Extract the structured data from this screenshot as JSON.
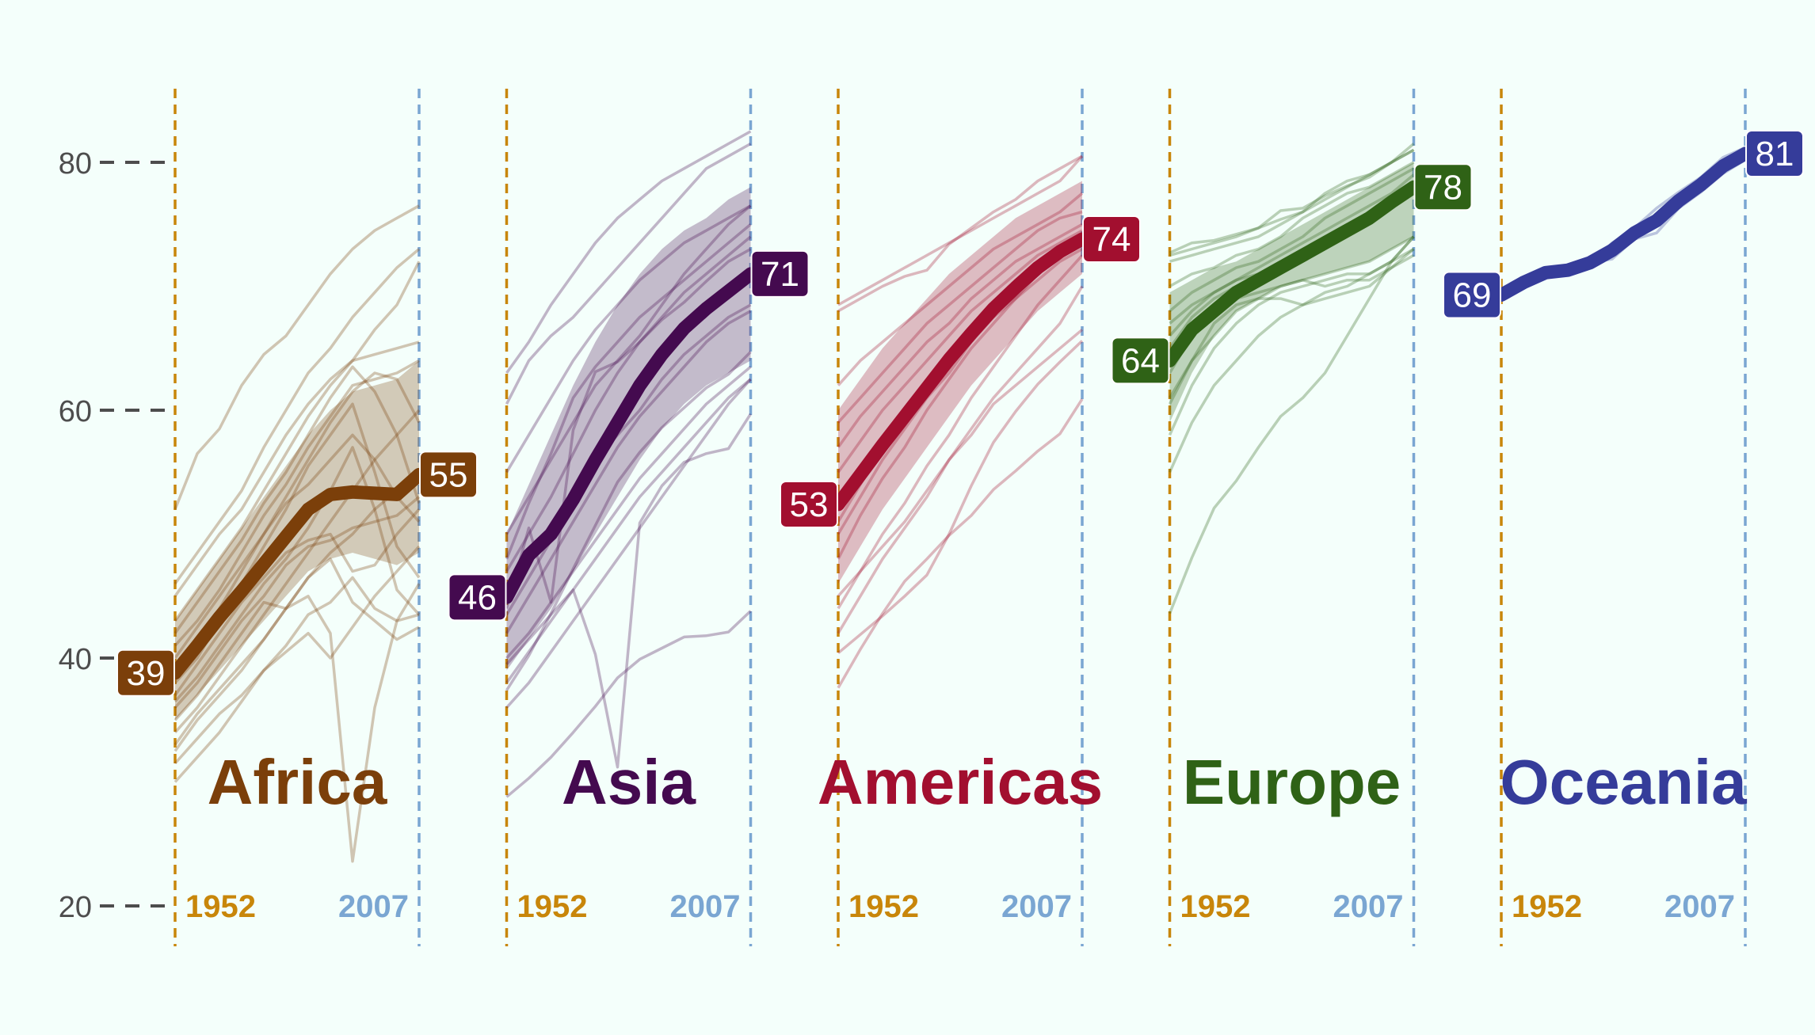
{
  "chart_data": {
    "type": "line",
    "x_years": [
      1952,
      1957,
      1962,
      1967,
      1972,
      1977,
      1982,
      1987,
      1992,
      1997,
      2002,
      2007
    ],
    "ylim": [
      20,
      85
    ],
    "yticks": [
      20,
      40,
      60,
      80
    ],
    "start_year_label": "1952",
    "end_year_label": "2007",
    "start_year_color": "#c8860a",
    "end_year_color": "#7aa6d2",
    "panels": [
      {
        "name": "Africa",
        "color": "#7b3f0a",
        "start_label": "39",
        "end_label": "55",
        "median": [
          38.8,
          41.0,
          43.3,
          45.4,
          47.6,
          49.8,
          52.0,
          53.2,
          53.4,
          53.3,
          53.2,
          54.8
        ],
        "band_low": [
          35.0,
          37.0,
          39.0,
          41.0,
          43.0,
          45.0,
          47.0,
          48.0,
          48.5,
          48.0,
          47.5,
          48.5
        ],
        "band_high": [
          43.0,
          45.5,
          48.0,
          50.5,
          53.0,
          55.5,
          58.0,
          60.0,
          61.5,
          62.0,
          62.5,
          64.0
        ],
        "countries": [
          [
            43.0,
            45.5,
            48.0,
            50.5,
            53.5,
            56.5,
            59.5,
            62.0,
            64.0,
            66.5,
            68.5,
            72.0
          ],
          [
            46.0,
            48.5,
            51.0,
            53.5,
            57.0,
            60.0,
            63.0,
            65.0,
            67.5,
            69.5,
            71.5,
            73.0
          ],
          [
            52.0,
            56.5,
            58.5,
            62.0,
            64.5,
            66.0,
            68.5,
            71.0,
            73.0,
            74.5,
            75.5,
            76.5
          ],
          [
            33.0,
            35.5,
            37.5,
            39.5,
            41.5,
            44.0,
            46.5,
            48.0,
            44.5,
            43.0,
            41.5,
            42.5
          ],
          [
            30.0,
            32.0,
            34.0,
            36.5,
            39.0,
            41.0,
            43.5,
            44.5,
            46.5,
            44.0,
            43.0,
            43.5
          ],
          [
            38.0,
            40.0,
            43.0,
            46.0,
            49.0,
            52.0,
            55.5,
            58.0,
            60.5,
            55.0,
            49.0,
            46.5
          ],
          [
            32.5,
            35.0,
            37.0,
            39.0,
            41.5,
            44.0,
            46.5,
            48.5,
            50.0,
            52.0,
            53.5,
            55.0
          ],
          [
            40.0,
            42.5,
            45.0,
            47.5,
            50.0,
            53.0,
            56.0,
            59.0,
            61.5,
            63.0,
            62.5,
            59.0
          ],
          [
            35.0,
            37.0,
            39.5,
            42.0,
            44.5,
            44.0,
            45.0,
            42.0,
            23.6,
            36.0,
            43.0,
            46.0
          ],
          [
            42.0,
            44.5,
            47.0,
            49.5,
            52.5,
            55.0,
            58.0,
            61.0,
            63.5,
            61.5,
            58.0,
            52.5
          ],
          [
            36.5,
            38.5,
            41.0,
            43.5,
            46.0,
            48.0,
            50.5,
            53.5,
            57.0,
            52.0,
            45.5,
            43.5
          ],
          [
            37.0,
            39.5,
            42.0,
            44.5,
            46.5,
            48.5,
            49.5,
            50.0,
            47.0,
            47.5,
            50.0,
            52.0
          ],
          [
            39.0,
            41.5,
            44.0,
            47.0,
            50.0,
            52.5,
            54.0,
            56.0,
            58.0,
            56.0,
            53.0,
            51.0
          ],
          [
            45.0,
            47.5,
            50.0,
            52.0,
            55.0,
            58.0,
            60.5,
            62.5,
            64.0,
            64.5,
            65.0,
            65.5
          ],
          [
            34.0,
            36.0,
            38.5,
            41.0,
            43.5,
            46.0,
            48.5,
            51.0,
            53.5,
            56.0,
            58.0,
            60.0
          ],
          [
            41.0,
            43.0,
            45.5,
            48.5,
            51.5,
            54.0,
            57.0,
            59.5,
            62.0,
            62.5,
            63.0,
            64.0
          ],
          [
            36.0,
            38.0,
            40.5,
            43.0,
            45.0,
            47.5,
            49.0,
            49.5,
            50.5,
            51.0,
            51.5,
            53.0
          ],
          [
            31.5,
            33.5,
            35.5,
            37.0,
            39.0,
            40.5,
            42.0,
            40.0,
            42.5,
            45.0,
            47.0,
            49.0
          ]
        ]
      },
      {
        "name": "Asia",
        "color": "#440a4f",
        "start_label": "46",
        "end_label": "71",
        "median": [
          44.9,
          48.3,
          50.0,
          52.8,
          56.0,
          59.0,
          62.0,
          64.5,
          66.6,
          68.2,
          69.6,
          71.0
        ],
        "band_low": [
          39.0,
          41.5,
          44.0,
          47.0,
          50.0,
          53.0,
          56.0,
          58.5,
          60.5,
          62.0,
          63.0,
          64.0
        ],
        "band_high": [
          50.0,
          54.0,
          58.0,
          62.0,
          65.5,
          68.5,
          71.0,
          73.0,
          74.5,
          75.5,
          77.0,
          78.0
        ],
        "countries": [
          [
            63.0,
            65.5,
            68.5,
            71.0,
            73.5,
            75.5,
            77.0,
            78.5,
            79.5,
            80.5,
            81.5,
            82.5
          ],
          [
            60.5,
            64.0,
            66.0,
            67.5,
            69.5,
            71.5,
            73.5,
            75.5,
            77.5,
            79.5,
            80.5,
            81.5
          ],
          [
            28.8,
            30.3,
            32.0,
            34.0,
            36.1,
            38.4,
            39.9,
            40.8,
            41.7,
            41.8,
            42.1,
            43.8
          ],
          [
            39.5,
            41.5,
            43.5,
            45.5,
            40.3,
            31.2,
            50.9,
            53.9,
            55.8,
            56.5,
            56.9,
            59.7
          ],
          [
            44.0,
            50.5,
            44.5,
            58.4,
            63.1,
            63.9,
            65.5,
            67.3,
            68.7,
            70.4,
            72.0,
            73.0
          ],
          [
            37.4,
            40.2,
            43.6,
            47.2,
            50.7,
            54.2,
            56.6,
            58.6,
            60.2,
            61.8,
            62.9,
            64.7
          ],
          [
            36.0,
            38.0,
            40.5,
            43.0,
            45.5,
            48.0,
            50.5,
            53.0,
            55.5,
            58.0,
            60.5,
            62.5
          ],
          [
            47.0,
            50.0,
            53.0,
            56.5,
            60.0,
            63.0,
            65.5,
            67.5,
            69.5,
            71.0,
            72.5,
            74.0
          ],
          [
            48.0,
            52.5,
            56.5,
            61.0,
            63.5,
            65.5,
            67.5,
            69.0,
            70.5,
            72.0,
            73.5,
            75.0
          ],
          [
            40.0,
            42.0,
            44.5,
            47.0,
            49.5,
            52.0,
            54.5,
            56.5,
            58.5,
            60.5,
            62.0,
            63.5
          ],
          [
            50.0,
            53.0,
            56.0,
            59.0,
            62.0,
            64.0,
            66.0,
            68.5,
            71.0,
            73.0,
            75.0,
            76.5
          ],
          [
            42.0,
            45.0,
            48.0,
            51.0,
            54.0,
            57.0,
            59.5,
            61.5,
            63.5,
            65.5,
            67.0,
            68.0
          ],
          [
            45.0,
            48.0,
            50.5,
            53.0,
            56.0,
            58.0,
            60.0,
            62.5,
            64.5,
            66.0,
            67.5,
            68.5
          ],
          [
            38.0,
            40.5,
            43.0,
            45.5,
            48.0,
            50.5,
            53.0,
            55.0,
            57.0,
            59.0,
            61.0,
            62.5
          ],
          [
            55.0,
            58.0,
            61.0,
            64.0,
            66.5,
            68.5,
            70.5,
            72.0,
            73.5,
            74.5,
            75.5,
            76.5
          ],
          [
            43.5,
            46.5,
            49.5,
            52.5,
            55.5,
            58.5,
            61.5,
            64.0,
            66.5,
            68.5,
            70.0,
            71.5
          ]
        ]
      },
      {
        "name": "Americas",
        "color": "#a20f2f",
        "start_label": "53",
        "end_label": "74",
        "median": [
          52.4,
          54.8,
          57.2,
          59.5,
          61.8,
          64.1,
          66.2,
          68.2,
          69.9,
          71.5,
          72.8,
          73.8
        ],
        "band_low": [
          46.0,
          49.0,
          52.0,
          54.5,
          57.0,
          59.5,
          62.0,
          64.0,
          66.0,
          68.0,
          69.5,
          71.0
        ],
        "band_high": [
          60.0,
          62.5,
          65.0,
          67.0,
          69.0,
          71.0,
          72.5,
          74.0,
          75.5,
          76.5,
          77.5,
          78.5
        ],
        "countries": [
          [
            68.5,
            69.5,
            70.5,
            71.5,
            72.5,
            73.5,
            74.5,
            75.5,
            76.5,
            77.5,
            78.5,
            80.5
          ],
          [
            68.0,
            69.0,
            70.0,
            70.8,
            71.3,
            73.4,
            74.7,
            76.0,
            77.0,
            78.5,
            79.5,
            80.5
          ],
          [
            37.6,
            40.7,
            43.6,
            46.2,
            48.0,
            49.9,
            51.5,
            53.6,
            55.1,
            56.7,
            58.1,
            60.9
          ],
          [
            40.4,
            41.9,
            43.4,
            45.0,
            46.7,
            50.0,
            53.9,
            57.4,
            59.9,
            62.1,
            63.9,
            65.6
          ],
          [
            42.0,
            45.0,
            48.0,
            50.5,
            53.0,
            56.0,
            58.0,
            60.5,
            62.0,
            63.5,
            65.0,
            66.5
          ],
          [
            45.0,
            47.0,
            49.0,
            51.0,
            53.5,
            56.0,
            58.5,
            61.0,
            63.0,
            65.0,
            67.0,
            70.0
          ],
          [
            50.0,
            53.0,
            56.0,
            58.5,
            61.0,
            63.0,
            65.5,
            67.5,
            69.0,
            70.5,
            72.0,
            73.0
          ],
          [
            55.0,
            57.5,
            60.0,
            62.0,
            64.0,
            66.0,
            68.0,
            69.5,
            71.0,
            72.5,
            73.5,
            74.5
          ],
          [
            62.0,
            64.0,
            65.5,
            67.0,
            68.5,
            70.0,
            71.5,
            73.0,
            74.0,
            75.0,
            76.0,
            77.5
          ],
          [
            48.0,
            51.5,
            54.5,
            57.0,
            60.0,
            62.5,
            65.0,
            67.0,
            69.0,
            71.0,
            72.5,
            73.5
          ],
          [
            57.0,
            59.5,
            61.5,
            63.5,
            65.5,
            67.0,
            69.0,
            70.5,
            72.0,
            73.0,
            74.0,
            75.0
          ],
          [
            44.0,
            47.0,
            50.0,
            52.5,
            55.5,
            58.0,
            61.0,
            63.5,
            66.0,
            68.5,
            70.5,
            72.5
          ],
          [
            51.0,
            54.0,
            57.0,
            59.5,
            62.0,
            64.5,
            66.5,
            68.5,
            70.5,
            72.0,
            73.0,
            74.0
          ],
          [
            59.0,
            61.0,
            63.0,
            65.0,
            67.0,
            68.5,
            70.0,
            71.5,
            73.0,
            74.5,
            75.5,
            76.0
          ]
        ]
      },
      {
        "name": "Europe",
        "color": "#2f6216",
        "start_label": "64",
        "end_label": "78",
        "median": [
          64.0,
          66.5,
          68.0,
          69.5,
          70.5,
          71.5,
          72.5,
          73.5,
          74.5,
          75.5,
          76.8,
          78.0
        ],
        "band_low": [
          59.0,
          63.0,
          66.0,
          68.0,
          69.0,
          70.0,
          70.5,
          71.0,
          71.5,
          72.0,
          73.0,
          74.0
        ],
        "band_high": [
          69.5,
          70.5,
          71.5,
          72.0,
          73.0,
          74.0,
          75.0,
          76.0,
          77.0,
          78.0,
          79.0,
          80.0
        ],
        "countries": [
          [
            43.6,
            48.1,
            52.1,
            54.3,
            57.0,
            59.5,
            61.0,
            63.0,
            66.0,
            69.0,
            72.0,
            74.0
          ],
          [
            72.7,
            73.5,
            73.7,
            74.2,
            74.7,
            76.1,
            76.3,
            77.3,
            78.1,
            78.8,
            80.0,
            81.0
          ],
          [
            72.5,
            73.0,
            73.5,
            74.0,
            74.7,
            75.4,
            76.0,
            77.0,
            78.0,
            79.0,
            80.0,
            81.0
          ],
          [
            72.0,
            72.5,
            73.0,
            73.5,
            74.0,
            75.0,
            76.0,
            77.5,
            78.5,
            79.0,
            80.0,
            81.5
          ],
          [
            70.0,
            71.0,
            71.5,
            72.5,
            73.0,
            74.0,
            75.5,
            76.5,
            77.5,
            78.0,
            79.0,
            80.0
          ],
          [
            66.0,
            68.0,
            69.5,
            70.5,
            71.5,
            72.5,
            73.5,
            74.5,
            75.5,
            76.5,
            77.5,
            79.0
          ],
          [
            61.0,
            64.0,
            66.0,
            68.0,
            69.0,
            70.0,
            70.5,
            71.0,
            71.5,
            72.0,
            73.0,
            74.0
          ],
          [
            55.0,
            59.0,
            62.0,
            64.0,
            66.0,
            67.5,
            68.5,
            69.5,
            70.0,
            71.0,
            72.0,
            73.0
          ],
          [
            63.0,
            66.0,
            67.5,
            69.0,
            69.5,
            70.0,
            70.5,
            70.0,
            70.5,
            70.5,
            71.5,
            72.5
          ],
          [
            60.5,
            64.0,
            67.0,
            68.5,
            69.0,
            69.0,
            68.5,
            69.0,
            69.5,
            70.0,
            71.5,
            73.0
          ],
          [
            65.0,
            67.5,
            69.0,
            70.0,
            71.0,
            72.0,
            73.0,
            74.0,
            75.0,
            76.0,
            77.0,
            78.5
          ],
          [
            68.0,
            69.5,
            70.5,
            71.5,
            72.0,
            73.0,
            74.0,
            75.5,
            76.5,
            77.5,
            78.5,
            79.5
          ],
          [
            58.0,
            62.0,
            65.0,
            67.0,
            68.5,
            69.5,
            70.0,
            70.5,
            71.0,
            71.0,
            72.0,
            74.0
          ],
          [
            67.0,
            68.5,
            69.5,
            70.5,
            71.0,
            72.0,
            73.0,
            74.0,
            75.0,
            75.5,
            76.5,
            77.5
          ]
        ]
      },
      {
        "name": "Oceania",
        "color": "#353c9a",
        "start_label": "69",
        "end_label": "81",
        "median": [
          69.3,
          70.3,
          71.1,
          71.3,
          71.9,
          72.9,
          74.3,
          75.3,
          76.9,
          78.2,
          79.7,
          80.7
        ],
        "band_low": [
          69.0,
          70.0,
          70.9,
          71.0,
          71.4,
          72.5,
          74.0,
          75.0,
          76.6,
          77.7,
          79.3,
          80.3
        ],
        "band_high": [
          69.6,
          70.5,
          71.3,
          71.6,
          72.3,
          73.3,
          74.8,
          75.8,
          77.4,
          78.6,
          80.1,
          81.0
        ],
        "countries": [
          [
            69.1,
            70.3,
            70.9,
            71.1,
            71.9,
            73.5,
            74.7,
            76.3,
            77.6,
            78.8,
            80.4,
            81.2
          ],
          [
            69.4,
            70.3,
            71.2,
            71.5,
            71.9,
            72.2,
            73.8,
            74.3,
            76.3,
            77.6,
            79.1,
            80.2
          ]
        ]
      }
    ]
  }
}
